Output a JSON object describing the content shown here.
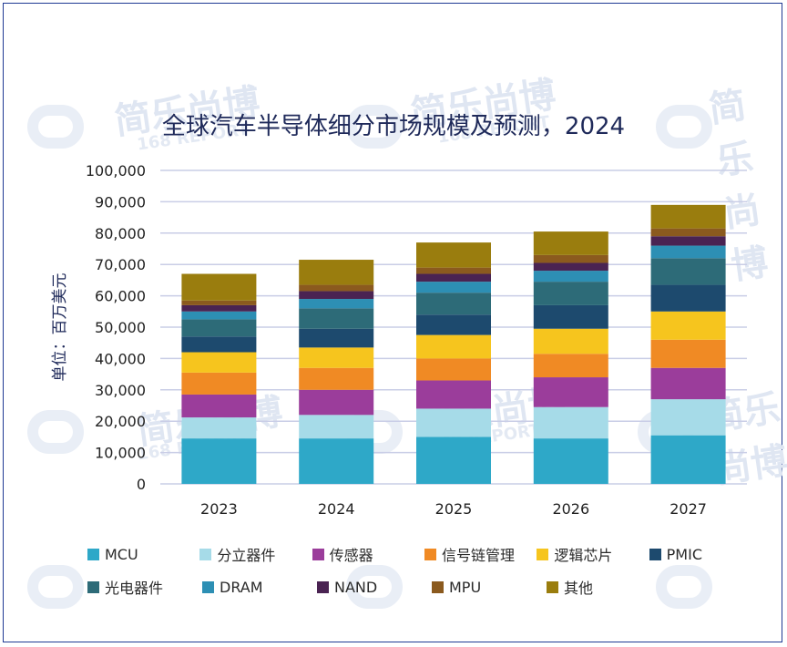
{
  "chart_data": {
    "type": "bar",
    "stacked": true,
    "title": "全球汽车半导体细分市场规模及预测，2024",
    "ylabel": "单位：百万美元",
    "xlabel": "",
    "ylim": [
      0,
      100000
    ],
    "yticks": [
      "0",
      "10,000",
      "20,000",
      "30,000",
      "40,000",
      "50,000",
      "60,000",
      "70,000",
      "80,000",
      "90,000",
      "100,000"
    ],
    "grid": true,
    "legend_position": "bottom",
    "categories": [
      "2023",
      "2024",
      "2025",
      "2026",
      "2027"
    ],
    "series": [
      {
        "name": "MCU",
        "color": "#2ea8c8",
        "values": [
          14500,
          14500,
          15000,
          14500,
          15500
        ]
      },
      {
        "name": "分立器件",
        "color": "#a6dbe8",
        "values": [
          6700,
          7500,
          9000,
          10000,
          11500
        ]
      },
      {
        "name": "传感器",
        "color": "#9b3d9b",
        "values": [
          7300,
          8000,
          9000,
          9500,
          10000
        ]
      },
      {
        "name": "信号链管理",
        "color": "#f08a24",
        "values": [
          7000,
          7000,
          7000,
          7500,
          9000
        ]
      },
      {
        "name": "逻辑芯片",
        "color": "#f6c51e",
        "values": [
          6500,
          6500,
          7500,
          8000,
          9000
        ]
      },
      {
        "name": "PMIC",
        "color": "#1d4a6e",
        "values": [
          5000,
          6000,
          6500,
          7500,
          8500
        ]
      },
      {
        "name": "光电器件",
        "color": "#2d6b78",
        "values": [
          5500,
          6500,
          7000,
          7500,
          8500
        ]
      },
      {
        "name": "DRAM",
        "color": "#2d8fb4",
        "values": [
          2500,
          3000,
          3500,
          3500,
          4000
        ]
      },
      {
        "name": "NAND",
        "color": "#4a2352",
        "values": [
          2000,
          2500,
          2500,
          2500,
          3000
        ]
      },
      {
        "name": "MPU",
        "color": "#8b5a1e",
        "values": [
          1500,
          2000,
          2000,
          2500,
          2500
        ]
      },
      {
        "name": "其他",
        "color": "#9a7d0e",
        "values": [
          8500,
          8000,
          8000,
          7500,
          7500
        ]
      }
    ]
  },
  "watermark": {
    "text": "简乐尚博",
    "sub": "168 REPORT"
  }
}
